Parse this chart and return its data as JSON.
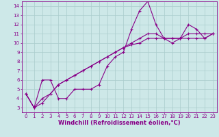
{
  "xlabel": "Windchill (Refroidissement éolien,°C)",
  "bg_color": "#cde8e8",
  "line_color": "#880088",
  "grid_color": "#aacccc",
  "series1_x": [
    0,
    1,
    2,
    3,
    4,
    5,
    6,
    7,
    8,
    9,
    10,
    11,
    12,
    13,
    14,
    15,
    16,
    17,
    18,
    19,
    20,
    21,
    22,
    23
  ],
  "series1_y": [
    4.5,
    3.0,
    6.0,
    6.0,
    4.0,
    4.0,
    5.0,
    5.0,
    5.0,
    5.5,
    7.5,
    8.5,
    9.0,
    11.5,
    13.5,
    14.5,
    12.0,
    10.5,
    10.0,
    10.5,
    12.0,
    11.5,
    10.5,
    11.0
  ],
  "series2_x": [
    0,
    1,
    2,
    3,
    4,
    5,
    6,
    7,
    8,
    9,
    10,
    11,
    12,
    13,
    14,
    15,
    16,
    17,
    18,
    19,
    20,
    21,
    22,
    23
  ],
  "series2_y": [
    4.5,
    3.0,
    4.0,
    4.5,
    5.5,
    6.0,
    6.5,
    7.0,
    7.5,
    8.0,
    8.5,
    9.0,
    9.5,
    10.0,
    10.5,
    11.0,
    11.0,
    10.5,
    10.5,
    10.5,
    11.0,
    11.0,
    11.0,
    11.0
  ],
  "series3_x": [
    0,
    1,
    2,
    3,
    4,
    5,
    6,
    7,
    8,
    9,
    10,
    11,
    12,
    13,
    14,
    15,
    16,
    17,
    18,
    19,
    20,
    21,
    22,
    23
  ],
  "series3_y": [
    4.5,
    3.0,
    3.5,
    4.5,
    5.5,
    6.0,
    6.5,
    7.0,
    7.5,
    8.0,
    8.5,
    9.0,
    9.5,
    9.8,
    10.0,
    10.5,
    10.5,
    10.5,
    10.5,
    10.5,
    10.5,
    10.5,
    10.5,
    11.0
  ],
  "xlim": [
    -0.5,
    23.5
  ],
  "ylim": [
    2.5,
    14.5
  ],
  "xticks": [
    0,
    1,
    2,
    3,
    4,
    5,
    6,
    7,
    8,
    9,
    10,
    11,
    12,
    13,
    14,
    15,
    16,
    17,
    18,
    19,
    20,
    21,
    22,
    23
  ],
  "yticks": [
    3,
    4,
    5,
    6,
    7,
    8,
    9,
    10,
    11,
    12,
    13,
    14
  ],
  "marker": "+",
  "markersize": 3,
  "linewidth": 0.8,
  "tick_fontsize": 5,
  "xlabel_fontsize": 6
}
